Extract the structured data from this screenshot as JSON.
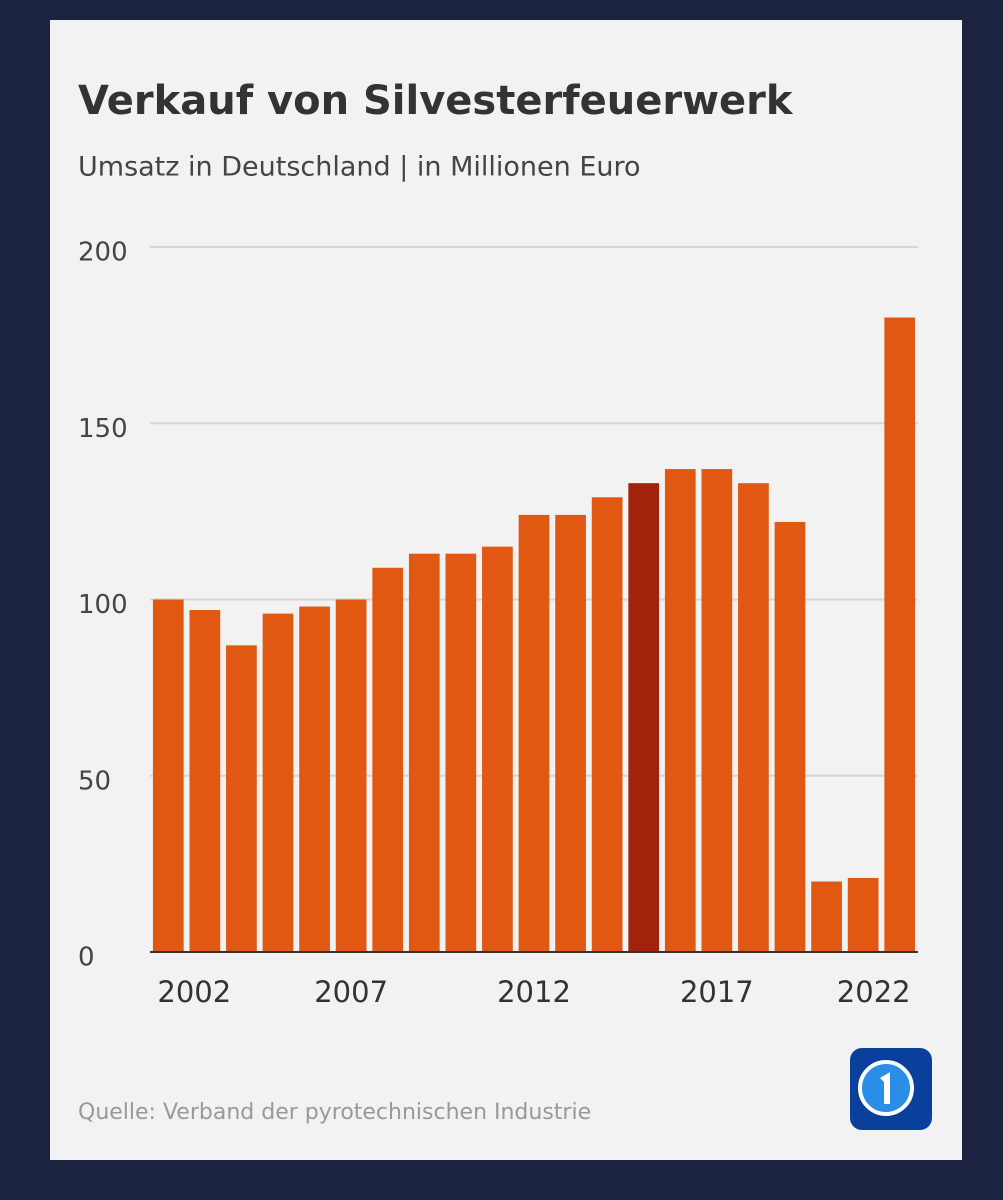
{
  "chart_data": {
    "type": "bar",
    "title": "Verkauf von Silvesterfeuerwerk",
    "subtitle": "Umsatz in Deutschland | in Millionen Euro",
    "source": "Quelle: Verband der pyrotechnischen Industrie",
    "categories": [
      "2002",
      null,
      null,
      null,
      null,
      "2007",
      null,
      null,
      null,
      null,
      "2012",
      null,
      null,
      null,
      null,
      "2017",
      null,
      null,
      null,
      null,
      "2022"
    ],
    "values": [
      100,
      97,
      87,
      96,
      98,
      100,
      109,
      113,
      113,
      115,
      124,
      124,
      129,
      133,
      137,
      137,
      133,
      122,
      20,
      21,
      180
    ],
    "colors": [
      "#e05812",
      "#e05812",
      "#e05812",
      "#e05812",
      "#e05812",
      "#e05812",
      "#e05812",
      "#e05812",
      "#e05812",
      "#e05812",
      "#e05812",
      "#e05812",
      "#e05812",
      "#a3220c",
      "#e05812",
      "#e05812",
      "#e05812",
      "#e05812",
      "#e05812",
      "#e05812",
      "#e05812"
    ],
    "ylim": [
      0,
      200
    ],
    "yticks": [
      0,
      50,
      100,
      150,
      200
    ],
    "grid": true
  }
}
